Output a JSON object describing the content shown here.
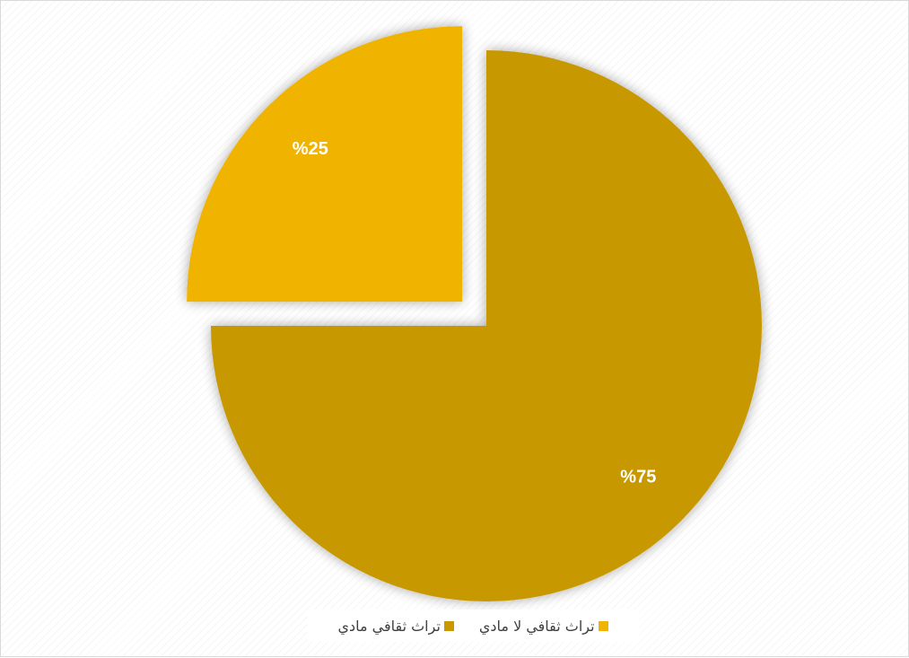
{
  "chart_data": {
    "type": "pie",
    "slices": [
      {
        "name": "تراث ثقافي مادي",
        "value": 75,
        "label": "%75",
        "color": "#c89800"
      },
      {
        "name": "تراث ثقافي لا مادي",
        "value": 25,
        "label": "%25",
        "color": "#f0b400"
      }
    ],
    "legend_position": "bottom",
    "exploded_slice": "تراث ثقافي لا مادي"
  },
  "legend": {
    "items": [
      {
        "label": "تراث ثقافي مادي",
        "color": "#c89800"
      },
      {
        "label": "تراث ثقافي لا مادي",
        "color": "#f0b400"
      }
    ]
  }
}
